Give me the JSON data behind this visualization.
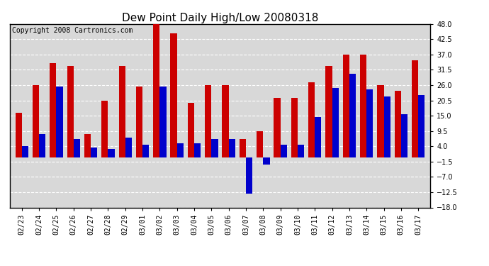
{
  "title": "Dew Point Daily High/Low 20080318",
  "copyright": "Copyright 2008 Cartronics.com",
  "dates": [
    "02/23",
    "02/24",
    "02/25",
    "02/26",
    "02/27",
    "02/28",
    "02/29",
    "03/01",
    "03/02",
    "03/03",
    "03/04",
    "03/05",
    "03/06",
    "03/07",
    "03/08",
    "03/09",
    "03/10",
    "03/11",
    "03/12",
    "03/13",
    "03/14",
    "03/15",
    "03/16",
    "03/17"
  ],
  "highs": [
    16.0,
    26.0,
    34.0,
    33.0,
    8.5,
    20.5,
    33.0,
    25.5,
    48.0,
    44.5,
    19.5,
    26.0,
    26.0,
    6.5,
    9.5,
    21.5,
    21.5,
    27.0,
    33.0,
    37.0,
    37.0,
    26.0,
    24.0,
    35.0
  ],
  "lows": [
    4.0,
    8.5,
    25.5,
    6.5,
    3.5,
    3.0,
    7.0,
    4.5,
    25.5,
    5.0,
    5.0,
    6.5,
    6.5,
    -13.0,
    -2.5,
    4.5,
    4.5,
    14.5,
    25.0,
    30.0,
    24.5,
    22.0,
    15.5,
    22.5
  ],
  "bar_width": 0.38,
  "high_color": "#cc0000",
  "low_color": "#0000cc",
  "ylim": [
    -18.0,
    48.0
  ],
  "yticks": [
    -18.0,
    -12.5,
    -7.0,
    -1.5,
    4.0,
    9.5,
    15.0,
    20.5,
    26.0,
    31.5,
    37.0,
    42.5,
    48.0
  ],
  "bg_color": "#ffffff",
  "plot_bg": "#d8d8d8",
  "title_fontsize": 11,
  "label_fontsize": 7,
  "copyright_fontsize": 7
}
